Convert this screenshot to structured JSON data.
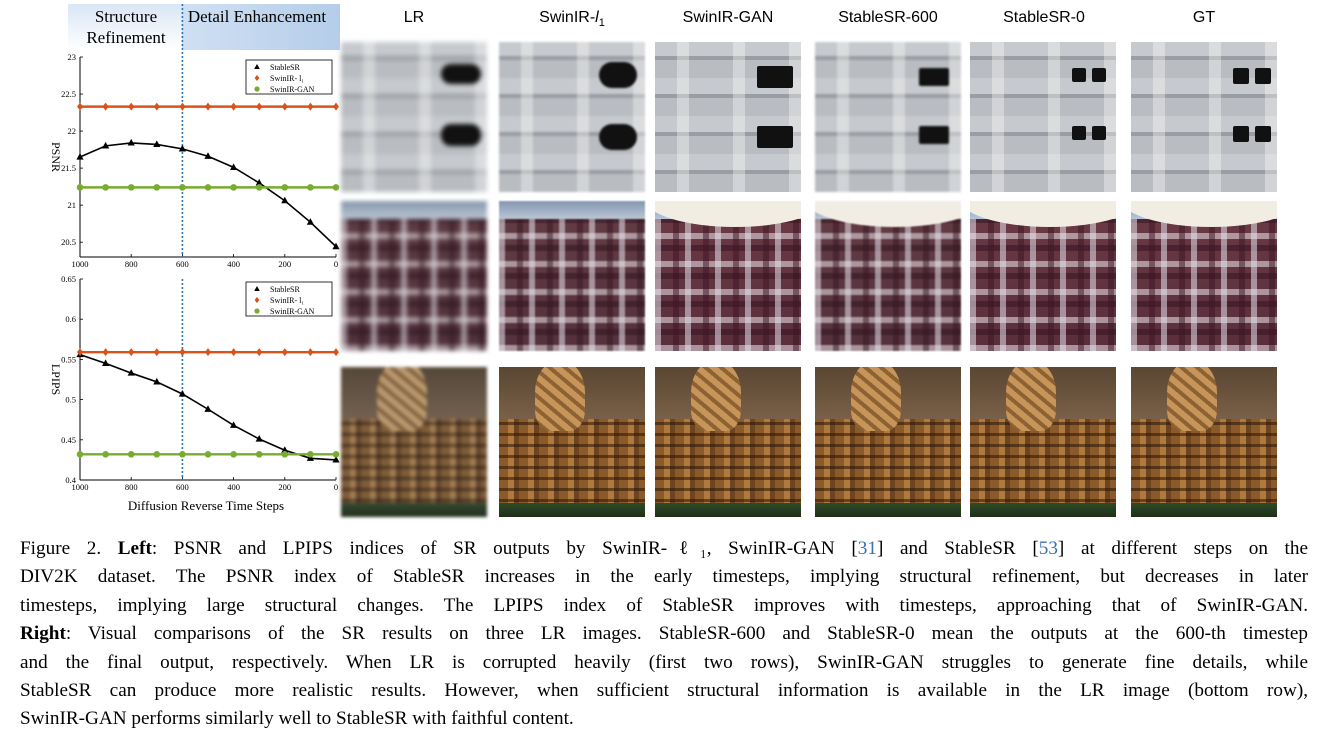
{
  "figure": {
    "phases": {
      "structure": "Structure Refinement",
      "detail": "Detail Enhancement"
    },
    "xlabel": "Diffusion Reverse Time Steps",
    "columns": [
      "LR",
      "SwinIR-l1",
      "SwinIR-GAN",
      "StableSR-600",
      "StableSR-0",
      "GT"
    ],
    "rows": [
      "building",
      "plaid-shirt",
      "wicker-basket"
    ]
  },
  "chart_data": [
    {
      "type": "line",
      "title": "",
      "ylabel": "PSNR",
      "xlabel": "",
      "x": [
        1000,
        900,
        800,
        700,
        600,
        500,
        400,
        300,
        200,
        100,
        0
      ],
      "xticks": [
        1000,
        800,
        600,
        400,
        200,
        0
      ],
      "yticks": [
        20.5,
        21,
        21.5,
        22,
        22.5,
        23
      ],
      "ylim": [
        20.3,
        23
      ],
      "xlim": [
        1000,
        0
      ],
      "reference_line_x": 600,
      "legend_position": "top-right",
      "series": [
        {
          "name": "StableSR",
          "marker": "triangle",
          "color": "#000000",
          "values": [
            21.65,
            21.8,
            21.84,
            21.82,
            21.76,
            21.66,
            21.51,
            21.3,
            21.06,
            20.77,
            20.44
          ]
        },
        {
          "name": "SwinIR-l1",
          "marker": "diamond",
          "color": "#d95319",
          "values": [
            22.33,
            22.33,
            22.33,
            22.33,
            22.33,
            22.33,
            22.33,
            22.33,
            22.33,
            22.33,
            22.33
          ]
        },
        {
          "name": "SwinIR-GAN",
          "marker": "circle",
          "color": "#77ac30",
          "values": [
            21.24,
            21.24,
            21.24,
            21.24,
            21.24,
            21.24,
            21.24,
            21.24,
            21.24,
            21.24,
            21.24
          ]
        }
      ]
    },
    {
      "type": "line",
      "title": "",
      "ylabel": "LPIPS",
      "xlabel": "Diffusion Reverse Time Steps",
      "x": [
        1000,
        900,
        800,
        700,
        600,
        500,
        400,
        300,
        200,
        100,
        0
      ],
      "xticks": [
        1000,
        800,
        600,
        400,
        200,
        0
      ],
      "yticks": [
        0.4,
        0.45,
        0.5,
        0.55,
        0.6,
        0.65
      ],
      "ylim": [
        0.4,
        0.65
      ],
      "xlim": [
        1000,
        0
      ],
      "reference_line_x": 600,
      "legend_position": "top-right",
      "series": [
        {
          "name": "StableSR",
          "marker": "triangle",
          "color": "#000000",
          "values": [
            0.556,
            0.545,
            0.533,
            0.522,
            0.507,
            0.488,
            0.468,
            0.451,
            0.437,
            0.427,
            0.425
          ]
        },
        {
          "name": "SwinIR-l1",
          "marker": "diamond",
          "color": "#d95319",
          "values": [
            0.559,
            0.559,
            0.559,
            0.559,
            0.559,
            0.559,
            0.559,
            0.559,
            0.559,
            0.559,
            0.559
          ]
        },
        {
          "name": "SwinIR-GAN",
          "marker": "circle",
          "color": "#77ac30",
          "values": [
            0.432,
            0.432,
            0.432,
            0.432,
            0.432,
            0.432,
            0.432,
            0.432,
            0.432,
            0.432,
            0.432
          ]
        }
      ]
    }
  ],
  "caption": {
    "lines": [
      [
        "Figure 2. ",
        {
          "b": "Left"
        },
        ": PSNR and LPIPS indices of SR outputs by SwinIR-ℓ₁, SwinIR-GAN [",
        {
          "c": "31"
        },
        "] and StableSR [",
        {
          "c": "53"
        },
        "] at different steps on the"
      ],
      [
        "DIV2K dataset. The PSNR index of StableSR increases in the early timesteps, implying structural refinement, but decreases in later"
      ],
      [
        "timesteps, implying large structural changes. The LPIPS index of StableSR improves with timesteps, approaching that of SwinIR-GAN."
      ],
      [
        {
          "b": "Right"
        },
        ": Visual comparisons of the SR results on three LR images. StableSR-600 and StableSR-0 mean the outputs at the 600-th timestep"
      ],
      [
        "and the final output, respectively. When LR is corrupted heavily (first two rows), SwinIR-GAN struggles to generate fine details, while"
      ],
      [
        "StableSR can produce more realistic results. However, when sufficient structural information is available in the LR image (bottom row),"
      ],
      [
        "SwinIR-GAN performs similarly well to StableSR with faithful content."
      ]
    ]
  }
}
